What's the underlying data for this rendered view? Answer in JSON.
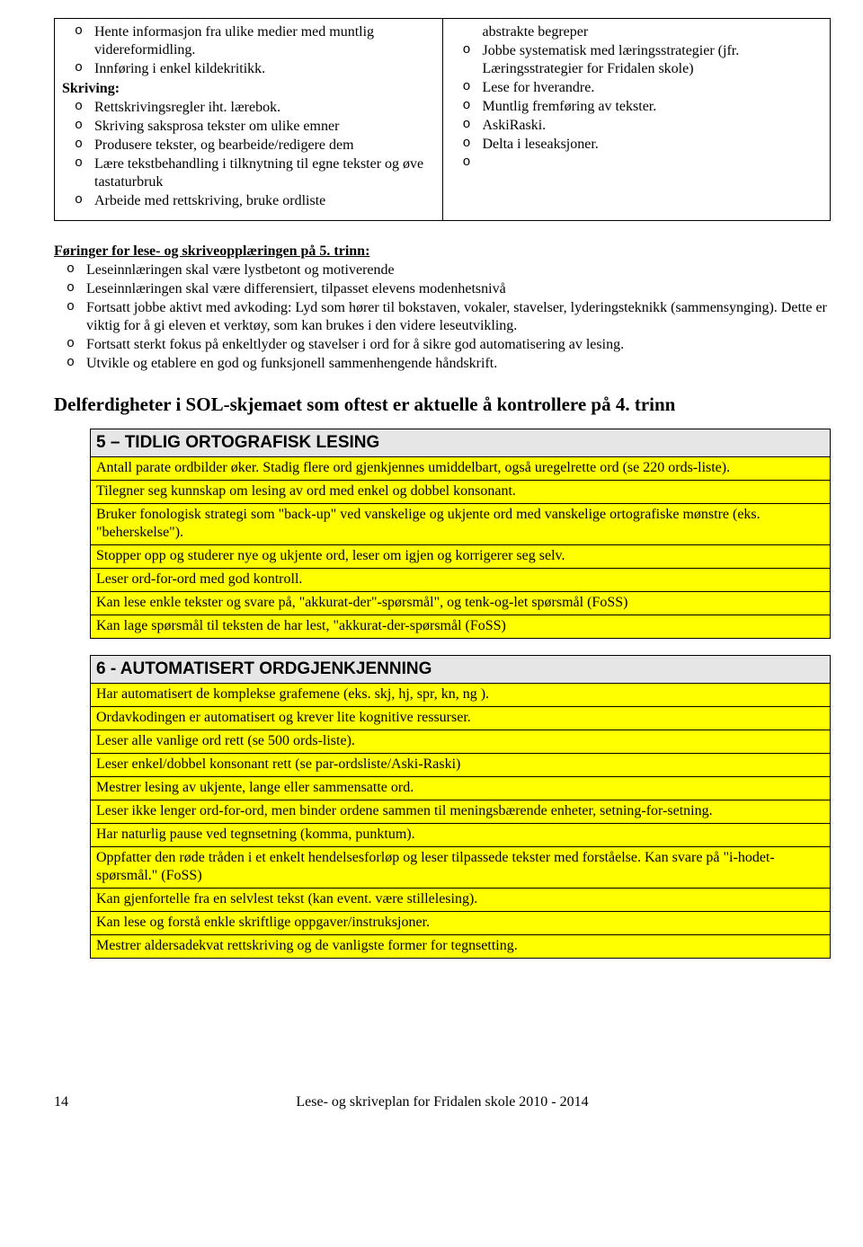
{
  "leftCol": {
    "topItems": [
      "Hente informasjon fra ulike medier med muntlig videreformidling.",
      "Innføring i enkel kildekritikk."
    ],
    "sectionLabel": "Skriving:",
    "skrivingItems": [
      "Rettskrivingsregler iht. lærebok.",
      "Skriving saksprosa tekster om ulike emner",
      "Produsere tekster, og bearbeide/redigere dem",
      "Lære tekstbehandling i tilknytning til egne tekster og øve tastaturbruk",
      "Arbeide med rettskriving, bruke ordliste"
    ]
  },
  "rightCol": {
    "firstLine": "abstrakte begreper",
    "items": [
      "Jobbe systematisk med læringsstrategier (jfr. Læringsstrategier for Fridalen skole)",
      "Lese for hverandre.",
      "Muntlig fremføring av tekster.",
      "AskiRaski.",
      "Delta i leseaksjoner.",
      ""
    ]
  },
  "foringer": {
    "title": "Føringer for lese- og skriveopplæringen på 5. trinn:",
    "items": [
      "Leseinnlæringen skal være lystbetont og motiverende",
      "Leseinnlæringen skal være differensiert, tilpasset elevens modenhetsnivå",
      "Fortsatt jobbe aktivt med avkoding: Lyd som hører til bokstaven, vokaler, stavelser, lyderingsteknikk (sammensynging). Dette er viktig for å gi eleven et verktøy, som kan brukes i den videre leseutvikling.",
      "Fortsatt sterkt fokus på enkeltlyder og stavelser i ord for å sikre god automatisering av lesing.",
      "Utvikle og etablere en god og funksjonell sammenhengende håndskrift."
    ]
  },
  "delferTitle": "Delferdigheter i SOL-skjemaet som oftest er aktuelle å kontrollere på 4. trinn",
  "table5": {
    "header": "5 – TIDLIG ORTOGRAFISK LESING",
    "rows": [
      "Antall parate ordbilder øker. Stadig flere ord gjenkjennes umiddelbart, også uregelrette ord (se 220 ords-liste).",
      "Tilegner seg kunnskap om lesing av ord med enkel og dobbel konsonant.",
      "Bruker fonologisk strategi som \"back-up\" ved vanskelige og ukjente ord med vanskelige ortografiske mønstre (eks. \"beherskelse\").",
      "Stopper opp og studerer nye og ukjente ord, leser om igjen og korrigerer seg selv.",
      "Leser ord-for-ord med god kontroll.",
      "Kan lese enkle tekster og svare på, \"akkurat-der\"-spørsmål\", og tenk-og-let spørsmål (FoSS)",
      "Kan lage spørsmål til teksten de har lest, \"akkurat-der-spørsmål (FoSS)"
    ]
  },
  "table6": {
    "header": "6 - AUTOMATISERT ORDGJENKJENNING",
    "rows": [
      "Har automatisert de komplekse grafemene (eks. skj, hj, spr, kn, ng ).",
      "Ordavkodingen er automatisert og krever lite kognitive ressurser.",
      "Leser alle vanlige ord rett (se 500 ords-liste).",
      "Leser enkel/dobbel konsonant rett (se par-ordsliste/Aski-Raski)",
      "Mestrer lesing av ukjente, lange eller sammensatte ord.",
      "Leser ikke lenger ord-for-ord, men binder ordene sammen til meningsbærende enheter, setning-for-setning.",
      "Har naturlig pause ved tegnsetning (komma, punktum).",
      "Oppfatter den røde tråden i et enkelt hendelsesforløp og leser tilpassede tekster med forståelse. Kan svare på \"i-hodet-spørsmål.\" (FoSS)",
      "Kan gjenfortelle fra en selvlest tekst (kan event. være stillelesing).",
      "Kan lese og forstå enkle skriftlige oppgaver/instruksjoner.",
      "Mestrer aldersadekvat rettskriving og de vanligste former for tegnsetting."
    ]
  },
  "footer": {
    "pageNum": "14",
    "title": "Lese- og skriveplan for Fridalen skole 2010 - 2014"
  }
}
